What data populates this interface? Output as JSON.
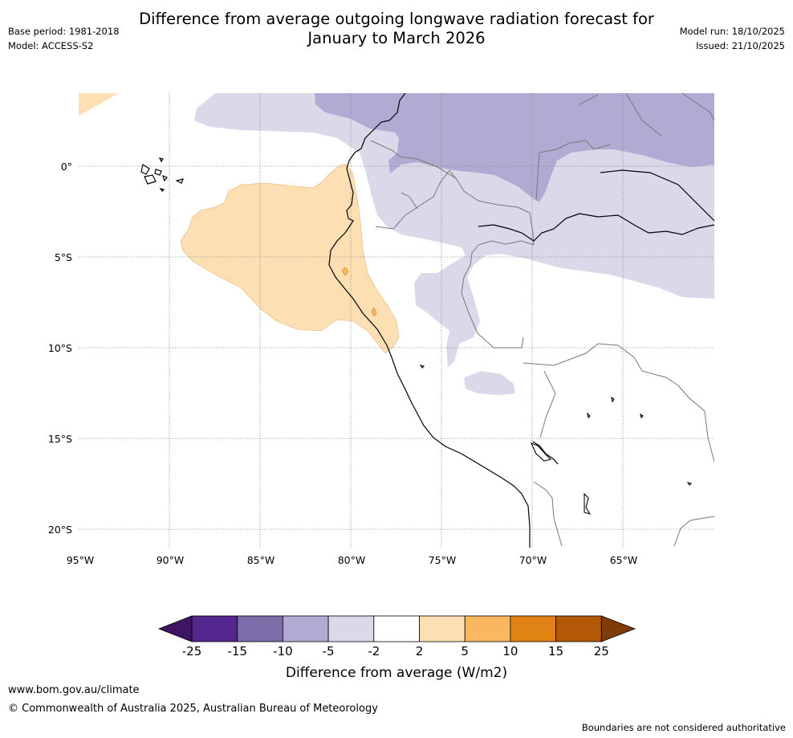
{
  "header": {
    "title_line1": "Difference from average outgoing longwave radiation forecast for",
    "title_line2": "January to March 2026",
    "base_period": "Base period: 1981-2018",
    "model": "Model: ACCESS-S2",
    "model_run": "Model run: 18/10/2025",
    "issued": "Issued: 21/10/2025"
  },
  "map": {
    "lat_labels": [
      "0°",
      "5°S",
      "10°S",
      "15°S",
      "20°S"
    ],
    "lon_labels": [
      "95°W",
      "90°W",
      "85°W",
      "80°W",
      "75°W",
      "70°W",
      "65°W"
    ]
  },
  "colorbar": {
    "title": "Difference from average (W/m2)",
    "ticks": [
      "-25",
      "-15",
      "-10",
      "-5",
      "-2",
      "2",
      "5",
      "10",
      "15",
      "25"
    ],
    "colors": [
      "#3f1563",
      "#54278f",
      "#7b6ea8",
      "#b1aad3",
      "#d9d9ea",
      "#ffffff",
      "#fddfb4",
      "#f9b75f",
      "#e08214",
      "#b35806",
      "#7f3b08"
    ]
  },
  "footer": {
    "url": "www.bom.gov.au/climate",
    "copyright": "© Commonwealth of Australia 2025, Australian Bureau of Meteorology",
    "note": "Boundaries are not considered authoritative"
  }
}
